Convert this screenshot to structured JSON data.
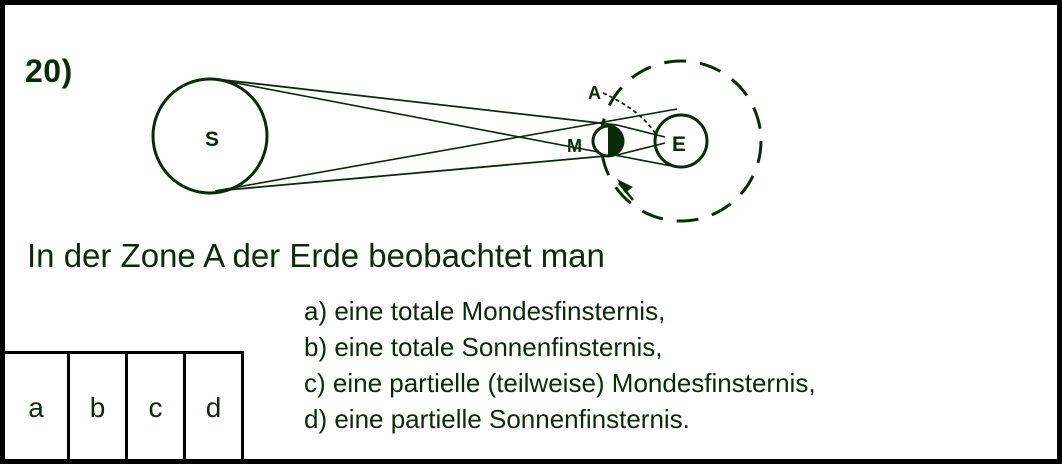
{
  "question": {
    "number": "20)",
    "text": "In der Zone A der Erde beobachtet man"
  },
  "diagram": {
    "sun_label": "S",
    "moon_label": "M",
    "earth_label": "E",
    "zone_label": "A"
  },
  "options": [
    "a) eine totale Mondesfinsternis,",
    "b) eine totale Sonnenfinsternis,",
    "c) eine partielle (teilweise) Mondesfinsternis,",
    "d) eine partielle Sonnenfinsternis."
  ],
  "answer_choices": [
    "a",
    "b",
    "c",
    "d"
  ],
  "colors": {
    "ink": "#0a2a0a",
    "border": "#000000",
    "background": "#ffffff"
  }
}
